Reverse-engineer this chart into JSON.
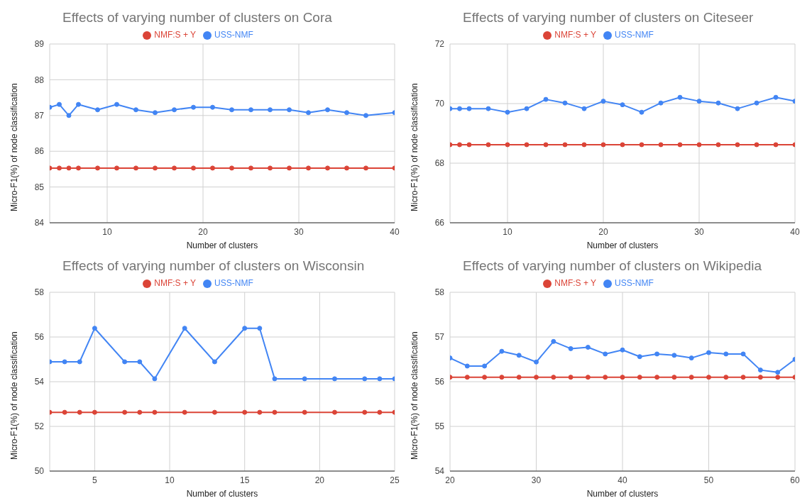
{
  "chart_data": [
    {
      "type": "line",
      "title": "Effects of varying number of clusters on Cora",
      "xlabel": "Number of clusters",
      "ylabel": "Micro-F1(%) of node classification",
      "x": [
        4,
        5,
        6,
        7,
        9,
        11,
        13,
        15,
        17,
        19,
        21,
        23,
        25,
        27,
        29,
        31,
        33,
        35,
        37,
        40
      ],
      "xlim": [
        4,
        40
      ],
      "xticks": [
        10,
        20,
        30,
        40
      ],
      "ylim": [
        84,
        89
      ],
      "yticks": [
        84,
        85,
        86,
        87,
        88,
        89
      ],
      "grid": true,
      "legend": "top",
      "marker": "circle",
      "line_style": "solid",
      "series": [
        {
          "name": "USS-NMF",
          "color": "#4285f4",
          "values": [
            87.23,
            87.31,
            87.0,
            87.31,
            87.16,
            87.31,
            87.16,
            87.08,
            87.16,
            87.23,
            87.23,
            87.16,
            87.16,
            87.16,
            87.16,
            87.08,
            87.16,
            87.08,
            87.0,
            87.08
          ]
        },
        {
          "name": "NMF:S + Y",
          "color": "#db4437",
          "values": [
            85.53,
            85.53,
            85.53,
            85.53,
            85.53,
            85.53,
            85.53,
            85.53,
            85.53,
            85.53,
            85.53,
            85.53,
            85.53,
            85.53,
            85.53,
            85.53,
            85.53,
            85.53,
            85.53,
            85.53
          ]
        }
      ]
    },
    {
      "type": "line",
      "title": "Effects of varying number of clusters on Citeseer",
      "xlabel": "Number of clusters",
      "ylabel": "Micro-F1(%) of node classification",
      "x": [
        4,
        5,
        6,
        8,
        10,
        12,
        14,
        16,
        18,
        20,
        22,
        24,
        26,
        28,
        30,
        32,
        34,
        36,
        38,
        40
      ],
      "xlim": [
        4,
        40
      ],
      "xticks": [
        10,
        20,
        30,
        40
      ],
      "ylim": [
        66,
        72
      ],
      "yticks": [
        66,
        68,
        70,
        72
      ],
      "grid": true,
      "legend": "top",
      "marker": "circle",
      "line_style": "solid",
      "series": [
        {
          "name": "USS-NMF",
          "color": "#4285f4",
          "values": [
            69.83,
            69.83,
            69.83,
            69.83,
            69.71,
            69.83,
            70.14,
            70.02,
            69.83,
            70.08,
            69.96,
            69.71,
            70.02,
            70.21,
            70.08,
            70.02,
            69.83,
            70.02,
            70.21,
            70.08
          ]
        },
        {
          "name": "NMF:S + Y",
          "color": "#db4437",
          "values": [
            68.62,
            68.62,
            68.62,
            68.62,
            68.62,
            68.62,
            68.62,
            68.62,
            68.62,
            68.62,
            68.62,
            68.62,
            68.62,
            68.62,
            68.62,
            68.62,
            68.62,
            68.62,
            68.62,
            68.62
          ]
        }
      ]
    },
    {
      "type": "line",
      "title": "Effects of varying number of clusters on Wisconsin",
      "xlabel": "Number of clusters",
      "ylabel": "Micro-F1(%) of node classification",
      "x": [
        2,
        3,
        4,
        5,
        7,
        8,
        9,
        11,
        13,
        15,
        16,
        17,
        19,
        21,
        23,
        24,
        25
      ],
      "xlim": [
        2,
        25
      ],
      "xticks": [
        5,
        10,
        15,
        20,
        25
      ],
      "ylim": [
        50,
        58
      ],
      "yticks": [
        50,
        52,
        54,
        56,
        58
      ],
      "grid": true,
      "legend": "top",
      "marker": "circle",
      "line_style": "solid",
      "series": [
        {
          "name": "USS-NMF",
          "color": "#4285f4",
          "values": [
            54.89,
            54.89,
            54.89,
            56.39,
            54.89,
            54.89,
            54.13,
            56.39,
            54.89,
            56.39,
            56.39,
            54.13,
            54.13,
            54.13,
            54.13,
            54.13,
            54.13
          ]
        },
        {
          "name": "NMF:S + Y",
          "color": "#db4437",
          "values": [
            52.63,
            52.63,
            52.63,
            52.63,
            52.63,
            52.63,
            52.63,
            52.63,
            52.63,
            52.63,
            52.63,
            52.63,
            52.63,
            52.63,
            52.63,
            52.63,
            52.63
          ]
        }
      ]
    },
    {
      "type": "line",
      "title": "Effects of varying number of clusters on Wikipedia",
      "xlabel": "Number of clusters",
      "ylabel": "Micro-F1(%) of node classification",
      "x": [
        20,
        22,
        24,
        26,
        28,
        30,
        32,
        34,
        36,
        38,
        40,
        42,
        44,
        46,
        48,
        50,
        52,
        54,
        56,
        58,
        60
      ],
      "xlim": [
        20,
        60
      ],
      "xticks": [
        20,
        30,
        40,
        50,
        60
      ],
      "ylim": [
        54,
        58
      ],
      "yticks": [
        54,
        55,
        56,
        57,
        58
      ],
      "grid": true,
      "legend": "top",
      "marker": "circle",
      "line_style": "solid",
      "series": [
        {
          "name": "USS-NMF",
          "color": "#4285f4",
          "values": [
            56.53,
            56.35,
            56.35,
            56.68,
            56.59,
            56.44,
            56.9,
            56.74,
            56.77,
            56.62,
            56.71,
            56.56,
            56.62,
            56.59,
            56.53,
            56.65,
            56.62,
            56.62,
            56.26,
            56.21,
            56.5
          ]
        },
        {
          "name": "NMF:S + Y",
          "color": "#db4437",
          "values": [
            56.1,
            56.1,
            56.1,
            56.1,
            56.1,
            56.1,
            56.1,
            56.1,
            56.1,
            56.1,
            56.1,
            56.1,
            56.1,
            56.1,
            56.1,
            56.1,
            56.1,
            56.1,
            56.1,
            56.1,
            56.1
          ]
        }
      ]
    }
  ]
}
